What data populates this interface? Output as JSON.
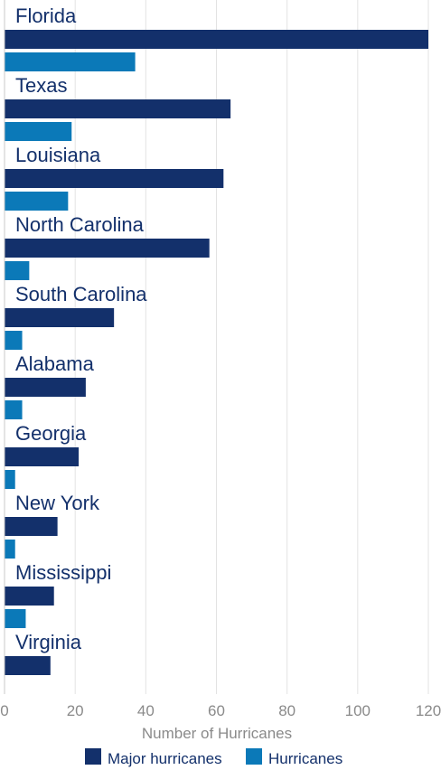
{
  "chart_data": {
    "type": "bar",
    "orientation": "horizontal",
    "categories": [
      "Florida",
      "Texas",
      "Louisiana",
      "North Carolina",
      "South Carolina",
      "Alabama",
      "Georgia",
      "New York",
      "Mississippi",
      "Virginia"
    ],
    "series": [
      {
        "name": "Major hurricanes",
        "color": "#13306b",
        "values": [
          120,
          64,
          62,
          58,
          31,
          23,
          21,
          15,
          14,
          13
        ]
      },
      {
        "name": "Hurricanes",
        "color": "#0b79b8",
        "values": [
          37,
          19,
          18,
          7,
          5,
          5,
          3,
          3,
          6,
          null
        ]
      }
    ],
    "xlabel": "Number of Hurricanes",
    "xlim": [
      0,
      120
    ],
    "xticks": [
      0,
      20,
      40,
      60,
      80,
      100,
      120
    ],
    "grid": "vertical",
    "legend": "bottom",
    "label_color": "#13306b",
    "grid_color": "#e3e3e3",
    "axis_text_color": "#8a8a8a"
  }
}
